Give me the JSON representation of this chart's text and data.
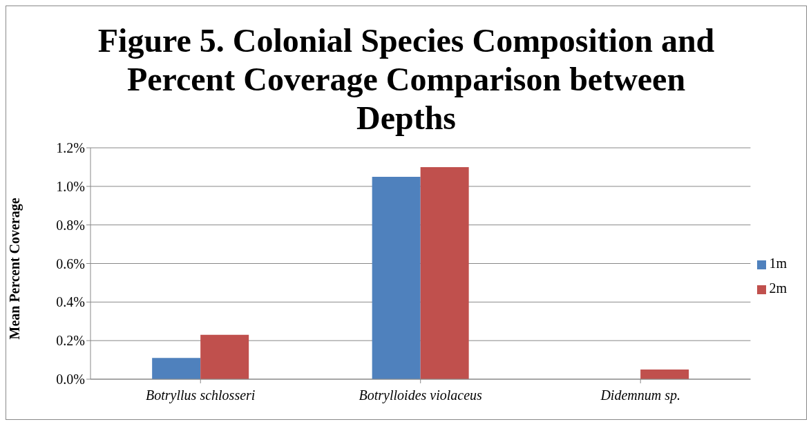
{
  "chart_data": {
    "type": "bar",
    "title": "Figure 5. Colonial Species Composition and Percent Coverage Comparison between Depths",
    "ylabel": "Mean Percent Coverage",
    "categories": [
      "Botryllus schlosseri",
      "Botrylloides violaceus",
      "Didemnum sp."
    ],
    "series": [
      {
        "name": "1m",
        "color": "#4f81bd",
        "values": [
          0.11,
          1.05,
          0
        ]
      },
      {
        "name": "2m",
        "color": "#c0504d",
        "values": [
          0.23,
          1.1,
          0.05
        ]
      }
    ],
    "ylim": [
      0,
      1.2
    ],
    "yticks": [
      {
        "value": 0,
        "label": "0.0%"
      },
      {
        "value": 0.2,
        "label": "0.2%"
      },
      {
        "value": 0.4,
        "label": "0.4%"
      },
      {
        "value": 0.6,
        "label": "0.6%"
      },
      {
        "value": 0.8,
        "label": "0.8%"
      },
      {
        "value": 1.0,
        "label": "1.0%"
      },
      {
        "value": 1.2,
        "label": "1.2%"
      }
    ],
    "grid": "y",
    "legend": "right"
  }
}
